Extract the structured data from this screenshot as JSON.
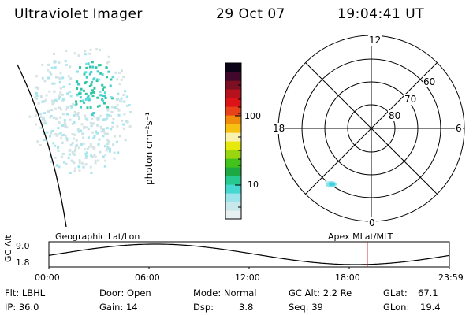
{
  "header": {
    "instrument": "Ultraviolet Imager",
    "date": "29 Oct 07",
    "time": "19:04:41 UT"
  },
  "colorbar": {
    "unit_label": "photon cm⁻²s⁻¹",
    "tick_labels": [
      "100",
      "10"
    ],
    "colors": [
      "#e8f1f1",
      "#c8e8ec",
      "#9ce3ea",
      "#46d8d0",
      "#27c990",
      "#1ea844",
      "#42c21b",
      "#9ad60f",
      "#e7e80b",
      "#f8f2ae",
      "#f6c112",
      "#f08b0c",
      "#e8421a",
      "#dd1417",
      "#b5121d",
      "#7c0f22",
      "#41082b",
      "#0a0416"
    ]
  },
  "polar_plot": {
    "mlt_labels": {
      "top": "12",
      "bottom": "0",
      "left": "18",
      "right": "6"
    },
    "lat_labels": [
      "60",
      "70",
      "80"
    ]
  },
  "timeline": {
    "left_label": "Geographic Lat/Lon",
    "right_label": "Apex MLat/MLT",
    "axis_title": "GC Alt",
    "y_ticks": [
      "9.0",
      "1.8"
    ],
    "x_ticks": [
      "00:00",
      "06:00",
      "12:00",
      "18:00",
      "23:59"
    ],
    "current_time_color": "#cc0000"
  },
  "footer": {
    "flt": "Flt: LBHL",
    "ip": "IP: 36.0",
    "door": "Door: Open",
    "gain": "Gain: 14",
    "mode": "Mode: Normal",
    "dsp_label": "Dsp:",
    "dsp_value": "3.8",
    "gc_alt": "GC Alt: 2.2 Re",
    "seq": "Seq: 39",
    "glat_label": "GLat:",
    "glat_value": "67.1",
    "glon_label": "GLon:",
    "glon_value": "19.4"
  }
}
